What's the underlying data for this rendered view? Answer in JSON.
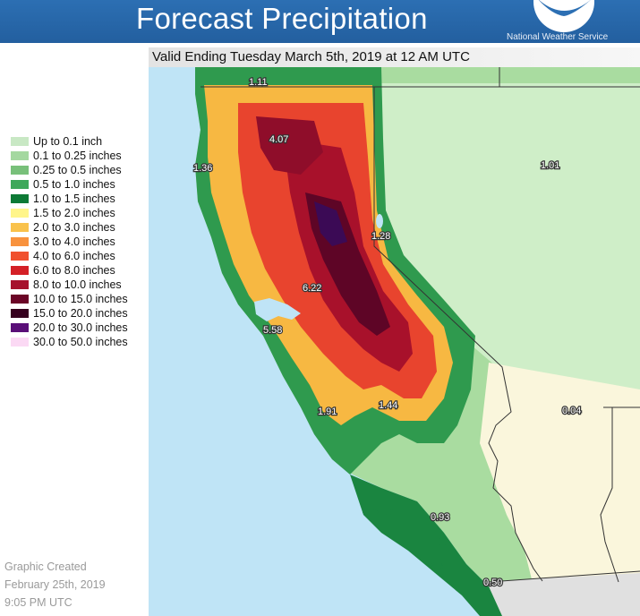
{
  "header": {
    "title": "Forecast Precipitation",
    "agency": "National Weather Service",
    "valid": "Valid Ending Tuesday March 5th, 2019 at 12 AM UTC"
  },
  "legend": [
    {
      "label": "Up to 0.1 inch",
      "color": "#c8e8c4"
    },
    {
      "label": "0.1 to 0.25 inches",
      "color": "#a4d8a0"
    },
    {
      "label": "0.25 to 0.5 inches",
      "color": "#78c07a"
    },
    {
      "label": "0.5 to 1.0 inches",
      "color": "#3ea85a"
    },
    {
      "label": "1.0 to 1.5 inches",
      "color": "#0d7a35"
    },
    {
      "label": "1.5 to 2.0 inches",
      "color": "#fff58a"
    },
    {
      "label": "2.0 to 3.0 inches",
      "color": "#f9c24c"
    },
    {
      "label": "3.0 to 4.0 inches",
      "color": "#f8923e"
    },
    {
      "label": "4.0 to 6.0 inches",
      "color": "#f0512f"
    },
    {
      "label": "6.0 to 8.0 inches",
      "color": "#d42026"
    },
    {
      "label": "8.0 to 10.0 inches",
      "color": "#a6112c"
    },
    {
      "label": "10.0 to 15.0 inches",
      "color": "#6b0526"
    },
    {
      "label": "15.0 to 20.0 inches",
      "color": "#36001e"
    },
    {
      "label": "20.0 to 30.0 inches",
      "color": "#5a0f78"
    },
    {
      "label": "30.0 to 50.0 inches",
      "color": "#fbd9f4"
    }
  ],
  "labels": {
    "l1": "1.11",
    "l2": "4.07",
    "l3": "1.36",
    "l4": "1.01",
    "l5": "1.28",
    "l6": "6.22",
    "l7": "5.58",
    "l8": "1.91",
    "l9": "1.44",
    "l10": "0.04",
    "l11": "0.93",
    "l12": "0.50"
  },
  "credit": {
    "line1": "Graphic Created",
    "line2": "February 25th, 2019",
    "line3": "9:05 PM UTC"
  }
}
